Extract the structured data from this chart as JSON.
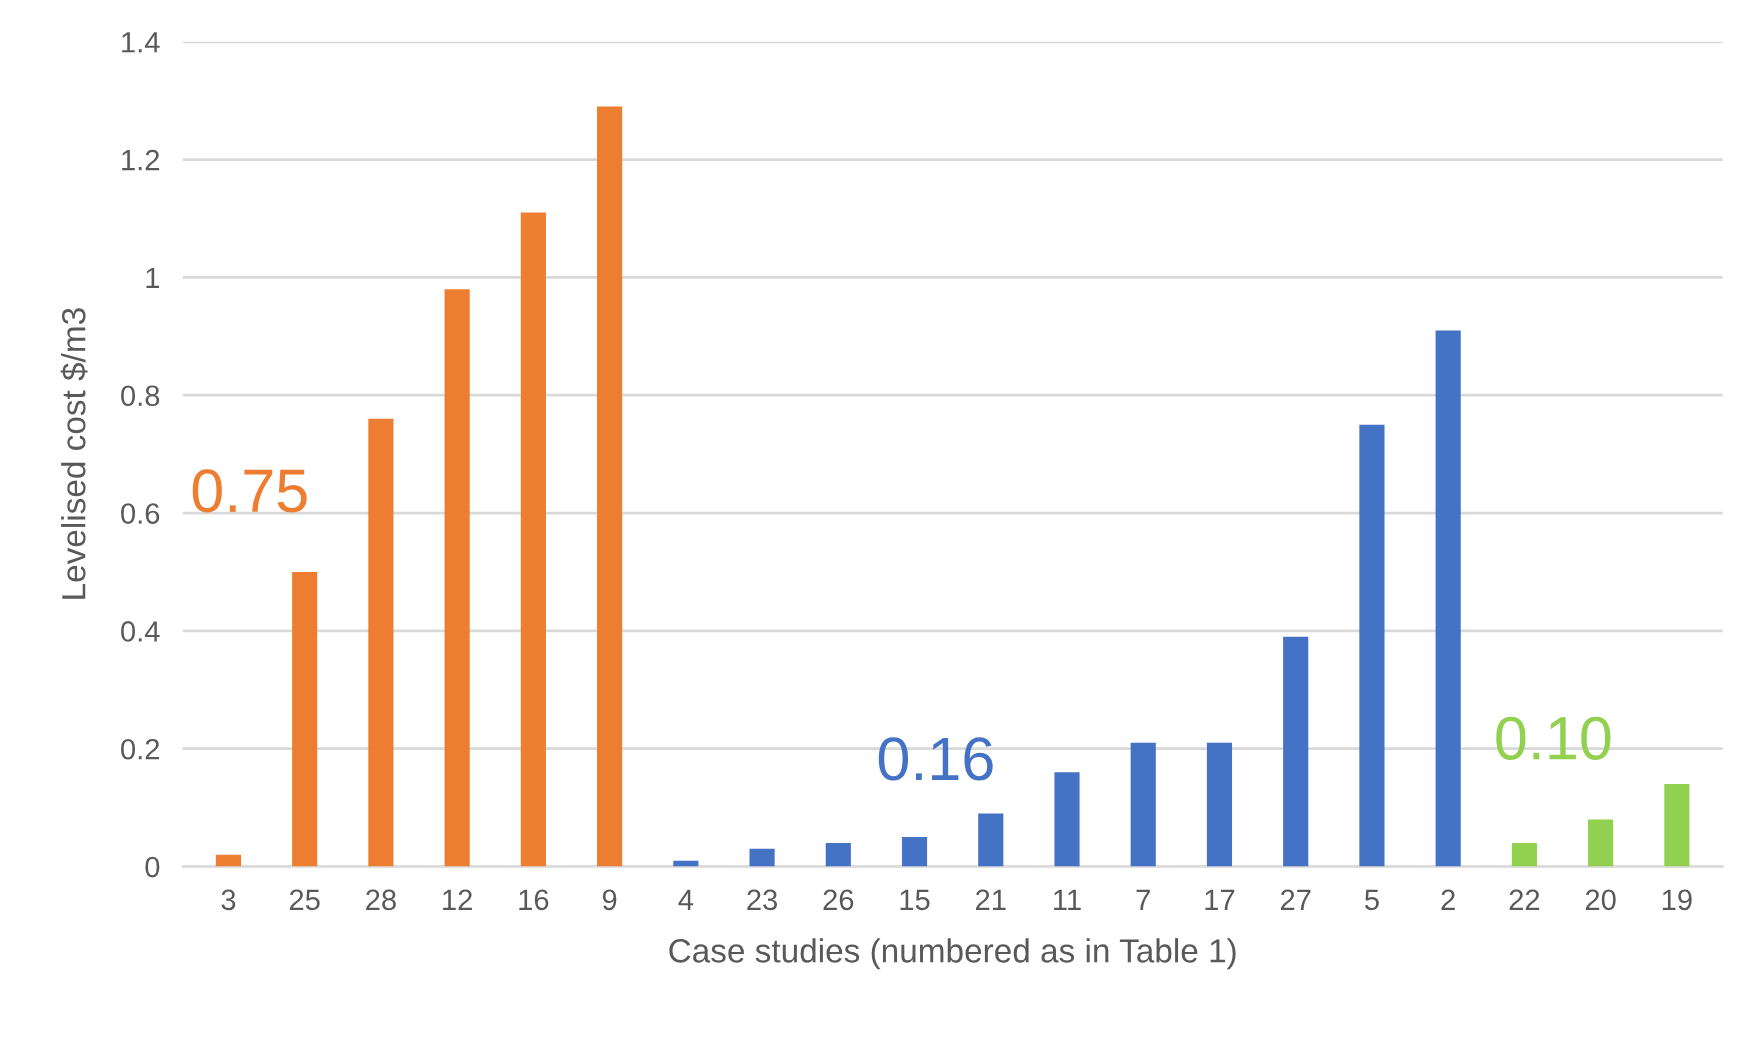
{
  "chart_data": {
    "type": "bar",
    "xlabel": "Case studies (numbered as in Table 1)",
    "ylabel": "Levelised cost $/m3",
    "categories": [
      "3",
      "25",
      "28",
      "12",
      "16",
      "9",
      "4",
      "23",
      "26",
      "15",
      "21",
      "11",
      "7",
      "17",
      "27",
      "5",
      "2",
      "22",
      "20",
      "19"
    ],
    "values": [
      0.02,
      0.5,
      0.76,
      0.98,
      1.11,
      1.29,
      0.01,
      0.03,
      0.04,
      0.05,
      0.09,
      0.16,
      0.21,
      0.21,
      0.39,
      0.75,
      0.91,
      0.04,
      0.08,
      0.14
    ],
    "colors": [
      "#ed7d31",
      "#ed7d31",
      "#ed7d31",
      "#ed7d31",
      "#ed7d31",
      "#ed7d31",
      "#4472c4",
      "#4472c4",
      "#4472c4",
      "#4472c4",
      "#4472c4",
      "#4472c4",
      "#4472c4",
      "#4472c4",
      "#4472c4",
      "#4472c4",
      "#4472c4",
      "#92d050",
      "#92d050",
      "#92d050"
    ],
    "ylim": [
      0,
      1.4
    ],
    "yticks": [
      0,
      0.2,
      0.4,
      0.6,
      0.8,
      1,
      1.2,
      1.4
    ],
    "grid": "y",
    "annotations": [
      "0.75",
      "0.16",
      "0.10"
    ]
  }
}
